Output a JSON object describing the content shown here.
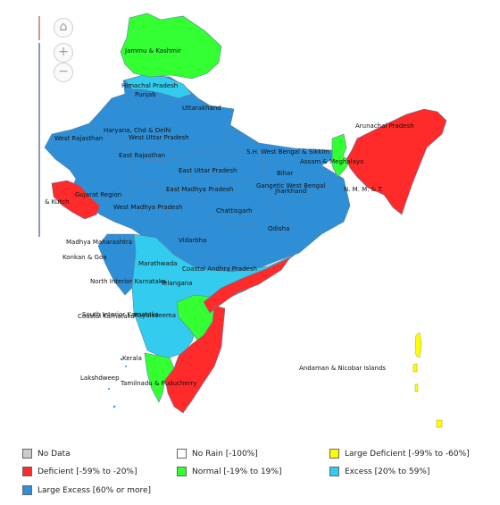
{
  "controls": {
    "home": "⌂",
    "zoom_in": "+",
    "zoom_out": "−"
  },
  "colors": {
    "no_data": "#cccccc",
    "no_rain": "#ffffff",
    "large_deficient": "#ffff00",
    "deficient": "#ff2a2a",
    "normal": "#33ff33",
    "excess": "#33ccee",
    "large_excess": "#2f8fd6",
    "border": "#5a7fa0"
  },
  "subdivisions": {
    "jammu_kashmir": "Jammu & Kashmir",
    "himachal": "Himachal Pradesh",
    "punjab": "Punjab",
    "uttarakhand": "Uttarakhand",
    "haryana": "Haryana, Chd & Delhi",
    "west_up": "West Uttar Pradesh",
    "west_rajasthan": "West Rajasthan",
    "east_rajasthan": "East Rajasthan",
    "east_up": "East Uttar Pradesh",
    "east_mp": "East Madhya Pradesh",
    "bihar": "Bihar",
    "shwb": "S.H. West Bengal & Sikkim",
    "assam": "Assam & Meghalaya",
    "arunachal": "Arunachal Pradesh",
    "gangetic_wb": "Gangetic West Bengal",
    "jharkhand": "Jharkhand",
    "nmmt": "N. M. M. & T.",
    "gujarat": "Gujarat Region",
    "kutch": "& Kutch",
    "west_mp": "West Madhya Pradesh",
    "chattisgarh": "Chattisgarh",
    "odisha": "Odisha",
    "vidarbha": "Vidarbha",
    "madhya_maha": "Madhya Maharashtra",
    "konkan": "Konkan & Goa",
    "marathwada": "Marathwada",
    "coastal_ap": "Coastal Andhra Pradesh",
    "telangana": "Telangana",
    "ni_karnataka": "North Interior Karnataka",
    "coastal_karnataka": "Coastal Karnataka",
    "si_karnataka": "South Interior Karnataka",
    "rayalaseema": "Rayalaseema",
    "kerala": "Kerala",
    "lakshadweep": "Lakshdweep",
    "tamilnadu": "Tamilnadu & Puducherry",
    "andaman": "Andaman & Nicobar Islands"
  },
  "legend": [
    {
      "label": "No Data",
      "color": "#cccccc"
    },
    {
      "label": "No Rain [-100%]",
      "color": "#ffffff"
    },
    {
      "label": "Large Deficient [-99% to -60%]",
      "color": "#ffff00"
    },
    {
      "label": "Deficient [-59% to -20%]",
      "color": "#ff2a2a"
    },
    {
      "label": "Normal [-19% to 19%]",
      "color": "#33ff33"
    },
    {
      "label": "Excess [20% to 59%]",
      "color": "#33ccee"
    },
    {
      "label": "Large Excess [60% or more]",
      "color": "#2f8fd6"
    }
  ]
}
